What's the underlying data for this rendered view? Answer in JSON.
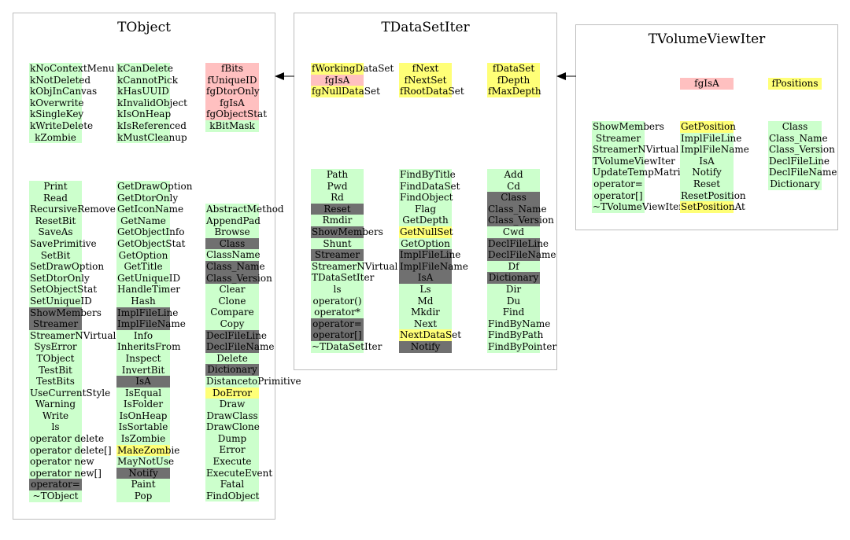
{
  "colors": {
    "green": "#ccffcc",
    "dark": "#707070",
    "yellow": "#ffff77",
    "pink": "#ffc0c0",
    "border": "#bdbdbd"
  },
  "tobject": {
    "title": "TObject",
    "col1_top": [
      {
        "t": "kNoContextMenu",
        "c": "g"
      },
      {
        "t": "kNotDeleted",
        "c": "g"
      },
      {
        "t": "kObjInCanvas",
        "c": "g"
      },
      {
        "t": "kOverwrite",
        "c": "g"
      },
      {
        "t": "kSingleKey",
        "c": "g"
      },
      {
        "t": "kWriteDelete",
        "c": "g"
      },
      {
        "t": "kZombie",
        "c": "g"
      }
    ],
    "col2_top": [
      {
        "t": "kCanDelete",
        "c": "g"
      },
      {
        "t": "kCannotPick",
        "c": "g"
      },
      {
        "t": "kHasUUID",
        "c": "g"
      },
      {
        "t": "kInvalidObject",
        "c": "g"
      },
      {
        "t": "kIsOnHeap",
        "c": "g"
      },
      {
        "t": "kIsReferenced",
        "c": "g"
      },
      {
        "t": "kMustCleanup",
        "c": "g"
      }
    ],
    "col3_top": [
      {
        "t": "fBits",
        "c": "p"
      },
      {
        "t": "fUniqueID",
        "c": "p"
      },
      {
        "t": "fgDtorOnly",
        "c": "p"
      },
      {
        "t": "fgIsA",
        "c": "p"
      },
      {
        "t": "fgObjectStat",
        "c": "p"
      },
      {
        "t": "kBitMask",
        "c": "g"
      }
    ],
    "col1_bottom": [
      {
        "t": "Print",
        "c": "g"
      },
      {
        "t": "Read",
        "c": "g"
      },
      {
        "t": "RecursiveRemove",
        "c": "g"
      },
      {
        "t": "ResetBit",
        "c": "g"
      },
      {
        "t": "SaveAs",
        "c": "g"
      },
      {
        "t": "SavePrimitive",
        "c": "g"
      },
      {
        "t": "SetBit",
        "c": "g"
      },
      {
        "t": "SetDrawOption",
        "c": "g"
      },
      {
        "t": "SetDtorOnly",
        "c": "g"
      },
      {
        "t": "SetObjectStat",
        "c": "g"
      },
      {
        "t": "SetUniqueID",
        "c": "g"
      },
      {
        "t": "ShowMembers",
        "c": "d"
      },
      {
        "t": "Streamer",
        "c": "d"
      },
      {
        "t": "StreamerNVirtual",
        "c": "g"
      },
      {
        "t": "SysError",
        "c": "g"
      },
      {
        "t": "TObject",
        "c": "g"
      },
      {
        "t": "TestBit",
        "c": "g"
      },
      {
        "t": "TestBits",
        "c": "g"
      },
      {
        "t": "UseCurrentStyle",
        "c": "g"
      },
      {
        "t": "Warning",
        "c": "g"
      },
      {
        "t": "Write",
        "c": "g"
      },
      {
        "t": "ls",
        "c": "g"
      },
      {
        "t": "operator delete",
        "c": "g"
      },
      {
        "t": "operator delete[]",
        "c": "g"
      },
      {
        "t": "operator new",
        "c": "g"
      },
      {
        "t": "operator new[]",
        "c": "g"
      },
      {
        "t": "operator=",
        "c": "d"
      },
      {
        "t": "~TObject",
        "c": "g"
      }
    ],
    "col2_bottom": [
      {
        "t": "GetDrawOption",
        "c": "g"
      },
      {
        "t": "GetDtorOnly",
        "c": "g"
      },
      {
        "t": "GetIconName",
        "c": "g"
      },
      {
        "t": "GetName",
        "c": "g"
      },
      {
        "t": "GetObjectInfo",
        "c": "g"
      },
      {
        "t": "GetObjectStat",
        "c": "g"
      },
      {
        "t": "GetOption",
        "c": "g"
      },
      {
        "t": "GetTitle",
        "c": "g"
      },
      {
        "t": "GetUniqueID",
        "c": "g"
      },
      {
        "t": "HandleTimer",
        "c": "g"
      },
      {
        "t": "Hash",
        "c": "g"
      },
      {
        "t": "ImplFileLine",
        "c": "d"
      },
      {
        "t": "ImplFileName",
        "c": "d"
      },
      {
        "t": "Info",
        "c": "g"
      },
      {
        "t": "InheritsFrom",
        "c": "g"
      },
      {
        "t": "Inspect",
        "c": "g"
      },
      {
        "t": "InvertBit",
        "c": "g"
      },
      {
        "t": "IsA",
        "c": "d"
      },
      {
        "t": "IsEqual",
        "c": "g"
      },
      {
        "t": "IsFolder",
        "c": "g"
      },
      {
        "t": "IsOnHeap",
        "c": "g"
      },
      {
        "t": "IsSortable",
        "c": "g"
      },
      {
        "t": "IsZombie",
        "c": "g"
      },
      {
        "t": "MakeZombie",
        "c": "y"
      },
      {
        "t": "MayNotUse",
        "c": "g"
      },
      {
        "t": "Notify",
        "c": "d"
      },
      {
        "t": "Paint",
        "c": "g"
      },
      {
        "t": "Pop",
        "c": "g"
      }
    ],
    "col3_bottom": [
      {
        "t": "AbstractMethod",
        "c": "g"
      },
      {
        "t": "AppendPad",
        "c": "g"
      },
      {
        "t": "Browse",
        "c": "g"
      },
      {
        "t": "Class",
        "c": "d"
      },
      {
        "t": "ClassName",
        "c": "g"
      },
      {
        "t": "Class_Name",
        "c": "d"
      },
      {
        "t": "Class_Version",
        "c": "d"
      },
      {
        "t": "Clear",
        "c": "g"
      },
      {
        "t": "Clone",
        "c": "g"
      },
      {
        "t": "Compare",
        "c": "g"
      },
      {
        "t": "Copy",
        "c": "g"
      },
      {
        "t": "DeclFileLine",
        "c": "d"
      },
      {
        "t": "DeclFileName",
        "c": "d"
      },
      {
        "t": "Delete",
        "c": "g"
      },
      {
        "t": "Dictionary",
        "c": "d"
      },
      {
        "t": "DistancetoPrimitive",
        "c": "g"
      },
      {
        "t": "DoError",
        "c": "y"
      },
      {
        "t": "Draw",
        "c": "g"
      },
      {
        "t": "DrawClass",
        "c": "g"
      },
      {
        "t": "DrawClone",
        "c": "g"
      },
      {
        "t": "Dump",
        "c": "g"
      },
      {
        "t": "Error",
        "c": "g"
      },
      {
        "t": "Execute",
        "c": "g"
      },
      {
        "t": "ExecuteEvent",
        "c": "g"
      },
      {
        "t": "Fatal",
        "c": "g"
      },
      {
        "t": "FindObject",
        "c": "g"
      }
    ]
  },
  "tdatasetiter": {
    "title": "TDataSetIter",
    "col1_top": [
      {
        "t": "fWorkingDataSet",
        "c": "y"
      },
      {
        "t": "fgIsA",
        "c": "p"
      },
      {
        "t": "fgNullDataSet",
        "c": "y"
      }
    ],
    "col2_top": [
      {
        "t": "fNext",
        "c": "y"
      },
      {
        "t": "fNextSet",
        "c": "y"
      },
      {
        "t": "fRootDataSet",
        "c": "y"
      }
    ],
    "col3_top": [
      {
        "t": "fDataSet",
        "c": "y"
      },
      {
        "t": "fDepth",
        "c": "y"
      },
      {
        "t": "fMaxDepth",
        "c": "y"
      }
    ],
    "col1_bottom": [
      {
        "t": "Path",
        "c": "g"
      },
      {
        "t": "Pwd",
        "c": "g"
      },
      {
        "t": "Rd",
        "c": "g"
      },
      {
        "t": "Reset",
        "c": "d"
      },
      {
        "t": "Rmdir",
        "c": "g"
      },
      {
        "t": "ShowMembers",
        "c": "d"
      },
      {
        "t": "Shunt",
        "c": "g"
      },
      {
        "t": "Streamer",
        "c": "d"
      },
      {
        "t": "StreamerNVirtual",
        "c": "g"
      },
      {
        "t": "TDataSetIter",
        "c": "g"
      },
      {
        "t": "ls",
        "c": "g"
      },
      {
        "t": "operator()",
        "c": "g"
      },
      {
        "t": "operator*",
        "c": "g"
      },
      {
        "t": "operator=",
        "c": "d"
      },
      {
        "t": "operator[]",
        "c": "d"
      },
      {
        "t": "~TDataSetIter",
        "c": "g"
      }
    ],
    "col2_bottom": [
      {
        "t": "FindByTitle",
        "c": "g"
      },
      {
        "t": "FindDataSet",
        "c": "g"
      },
      {
        "t": "FindObject",
        "c": "g"
      },
      {
        "t": "Flag",
        "c": "g"
      },
      {
        "t": "GetDepth",
        "c": "g"
      },
      {
        "t": "GetNullSet",
        "c": "y"
      },
      {
        "t": "GetOption",
        "c": "g"
      },
      {
        "t": "ImplFileLine",
        "c": "d"
      },
      {
        "t": "ImplFileName",
        "c": "d"
      },
      {
        "t": "IsA",
        "c": "d"
      },
      {
        "t": "Ls",
        "c": "g"
      },
      {
        "t": "Md",
        "c": "g"
      },
      {
        "t": "Mkdir",
        "c": "g"
      },
      {
        "t": "Next",
        "c": "g"
      },
      {
        "t": "NextDataSet",
        "c": "y"
      },
      {
        "t": "Notify",
        "c": "d"
      }
    ],
    "col3_bottom": [
      {
        "t": "Add",
        "c": "g"
      },
      {
        "t": "Cd",
        "c": "g"
      },
      {
        "t": "Class",
        "c": "d"
      },
      {
        "t": "Class_Name",
        "c": "d"
      },
      {
        "t": "Class_Version",
        "c": "d"
      },
      {
        "t": "Cwd",
        "c": "g"
      },
      {
        "t": "DeclFileLine",
        "c": "d"
      },
      {
        "t": "DeclFileName",
        "c": "d"
      },
      {
        "t": "Df",
        "c": "g"
      },
      {
        "t": "Dictionary",
        "c": "d"
      },
      {
        "t": "Dir",
        "c": "g"
      },
      {
        "t": "Du",
        "c": "g"
      },
      {
        "t": "Find",
        "c": "g"
      },
      {
        "t": "FindByName",
        "c": "g"
      },
      {
        "t": "FindByPath",
        "c": "g"
      },
      {
        "t": "FindByPointer",
        "c": "g"
      }
    ]
  },
  "tvolumeviewiter": {
    "title": "TVolumeViewIter",
    "col2_top": [
      {
        "t": "fgIsA",
        "c": "p"
      }
    ],
    "col3_top": [
      {
        "t": "fPositions",
        "c": "y"
      }
    ],
    "col1_bottom": [
      {
        "t": "ShowMembers",
        "c": "g"
      },
      {
        "t": "Streamer",
        "c": "g"
      },
      {
        "t": "StreamerNVirtual",
        "c": "g"
      },
      {
        "t": "TVolumeViewIter",
        "c": "g"
      },
      {
        "t": "UpdateTempMatrix",
        "c": "g"
      },
      {
        "t": "operator=",
        "c": "g"
      },
      {
        "t": "operator[]",
        "c": "g"
      },
      {
        "t": "~TVolumeViewIter",
        "c": "g"
      }
    ],
    "col2_bottom": [
      {
        "t": "GetPosition",
        "c": "y"
      },
      {
        "t": "ImplFileLine",
        "c": "g"
      },
      {
        "t": "ImplFileName",
        "c": "g"
      },
      {
        "t": "IsA",
        "c": "g"
      },
      {
        "t": "Notify",
        "c": "g"
      },
      {
        "t": "Reset",
        "c": "g"
      },
      {
        "t": "ResetPosition",
        "c": "g"
      },
      {
        "t": "SetPositionAt",
        "c": "y"
      }
    ],
    "col3_bottom": [
      {
        "t": "Class",
        "c": "g"
      },
      {
        "t": "Class_Name",
        "c": "g"
      },
      {
        "t": "Class_Version",
        "c": "g"
      },
      {
        "t": "DeclFileLine",
        "c": "g"
      },
      {
        "t": "DeclFileName",
        "c": "g"
      },
      {
        "t": "Dictionary",
        "c": "g"
      }
    ]
  }
}
